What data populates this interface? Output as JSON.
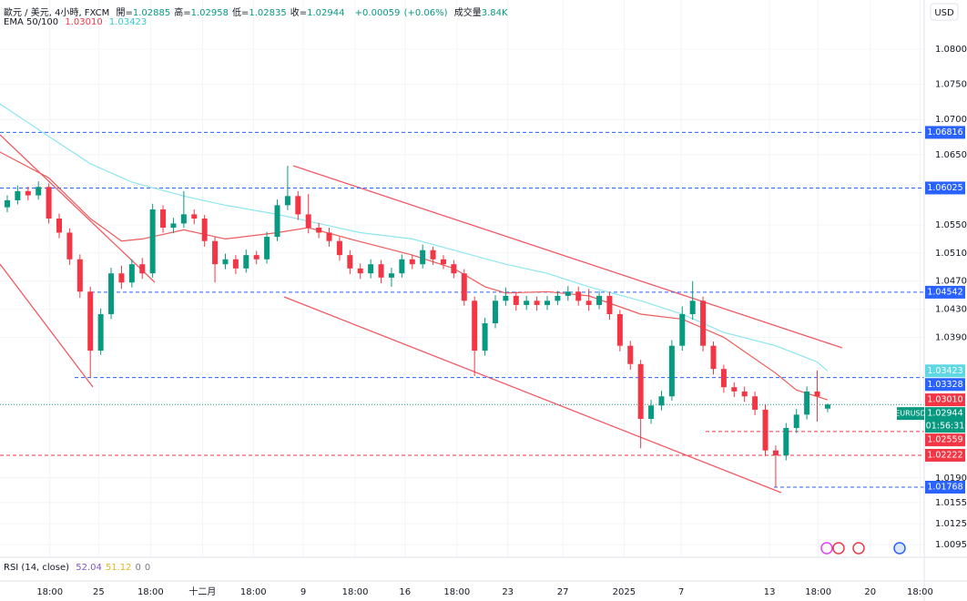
{
  "chart_data": {
    "type": "candlestick",
    "title": "歐元 / 美元, 4小時, FXCM",
    "currency": "USD",
    "ohlc_labels": [
      "開=",
      "高=",
      "低=",
      "收="
    ],
    "change": {
      "value": 0.00059,
      "label": "+0.00059"
    },
    "change_pct": {
      "value": 0.06,
      "label": "(+0.06%)"
    },
    "volume_label": "成交量",
    "volume": {
      "value": 3840,
      "label": "3.84K"
    },
    "ema_label": "EMA 50/100",
    "rsi": {
      "label": "RSI (14, close)",
      "values": [
        52.04,
        51.12,
        0,
        0
      ],
      "colors": [
        "#7e57c2",
        "#e6b422",
        "#787b86",
        "#787b86"
      ]
    },
    "up_color": "#089981",
    "down_color": "#f23645",
    "grid": true,
    "xlim": [
      -0.7,
      88.3
    ],
    "ylim": [
      1.0077,
      1.087
    ],
    "yticks": [
      {
        "value": 1.08,
        "label": "1.08000"
      },
      {
        "value": 1.075,
        "label": "1.07500"
      },
      {
        "value": 1.07,
        "label": "1.07000"
      },
      {
        "value": 1.065,
        "label": "1.06500"
      },
      {
        "value": 1.055,
        "label": "1.05500"
      },
      {
        "value": 1.051,
        "label": "1.05100"
      },
      {
        "value": 1.047,
        "label": "1.04700"
      },
      {
        "value": 1.043,
        "label": "1.04300"
      },
      {
        "value": 1.039,
        "label": "1.03900"
      },
      {
        "value": 1.019,
        "label": "1.01900"
      },
      {
        "value": 1.0155,
        "label": "1.01550"
      },
      {
        "value": 1.0125,
        "label": "1.01250"
      },
      {
        "value": 1.0095,
        "label": "1.00950"
      }
    ],
    "xticks": [
      {
        "value": 4.1,
        "label": "18:00"
      },
      {
        "value": 8.8,
        "label": "25"
      },
      {
        "value": 13.8,
        "label": "18:00"
      },
      {
        "value": 18.8,
        "label": "十二月"
      },
      {
        "value": 23.7,
        "label": "18:00"
      },
      {
        "value": 28.5,
        "label": "9"
      },
      {
        "value": 33.5,
        "label": "18:00"
      },
      {
        "value": 38.3,
        "label": "16"
      },
      {
        "value": 43.3,
        "label": "18:00"
      },
      {
        "value": 48.2,
        "label": "23"
      },
      {
        "value": 53.5,
        "label": "27"
      },
      {
        "value": 59.4,
        "label": "2025"
      },
      {
        "value": 64.9,
        "label": "7"
      },
      {
        "value": 73.4,
        "label": "13"
      },
      {
        "value": 78.1,
        "label": "18:00"
      },
      {
        "value": 83.1,
        "label": "20"
      },
      {
        "value": 87.9,
        "label": "18:00"
      }
    ],
    "candles": [
      [
        1.0575,
        1.0592,
        1.0568,
        1.0585
      ],
      [
        1.0585,
        1.0606,
        1.0579,
        1.0598
      ],
      [
        1.0598,
        1.0604,
        1.0585,
        1.0592
      ],
      [
        1.0592,
        1.0612,
        1.0586,
        1.0604
      ],
      [
        1.0604,
        1.0609,
        1.0552,
        1.0559
      ],
      [
        1.0559,
        1.0566,
        1.0531,
        1.0539
      ],
      [
        1.0539,
        1.0545,
        1.0493,
        1.0501
      ],
      [
        1.0501,
        1.0508,
        1.0446,
        1.0455
      ],
      [
        1.0455,
        1.0462,
        1.0333,
        1.0371
      ],
      [
        1.0371,
        1.0431,
        1.0365,
        1.0423
      ],
      [
        1.0423,
        1.0489,
        1.0416,
        1.0481
      ],
      [
        1.0481,
        1.0492,
        1.0459,
        1.0468
      ],
      [
        1.0468,
        1.0501,
        1.0461,
        1.0494
      ],
      [
        1.0494,
        1.0503,
        1.0473,
        1.0481
      ],
      [
        1.0481,
        1.058,
        1.0475,
        1.0572
      ],
      [
        1.0572,
        1.0578,
        1.0539,
        1.0546
      ],
      [
        1.0546,
        1.056,
        1.0538,
        1.0552
      ],
      [
        1.0552,
        1.0598,
        1.0546,
        1.0565
      ],
      [
        1.0565,
        1.0572,
        1.0551,
        1.0559
      ],
      [
        1.0559,
        1.0564,
        1.0519,
        1.0527
      ],
      [
        1.0527,
        1.0533,
        1.0468,
        1.0494
      ],
      [
        1.0494,
        1.0509,
        1.0487,
        1.0501
      ],
      [
        1.0501,
        1.0507,
        1.048,
        1.0488
      ],
      [
        1.0488,
        1.0515,
        1.0482,
        1.0507
      ],
      [
        1.0507,
        1.0513,
        1.0494,
        1.0501
      ],
      [
        1.0501,
        1.054,
        1.0495,
        1.0533
      ],
      [
        1.0533,
        1.0586,
        1.0527,
        1.0578
      ],
      [
        1.0578,
        1.0634,
        1.0571,
        1.0591
      ],
      [
        1.0591,
        1.0598,
        1.0557,
        1.0565
      ],
      [
        1.0565,
        1.0594,
        1.0538,
        1.0546
      ],
      [
        1.0546,
        1.0553,
        1.0531,
        1.0539
      ],
      [
        1.0539,
        1.0546,
        1.0519,
        1.0527
      ],
      [
        1.0527,
        1.0533,
        1.0499,
        1.0507
      ],
      [
        1.0507,
        1.0514,
        1.048,
        1.0488
      ],
      [
        1.0488,
        1.0495,
        1.0473,
        1.0481
      ],
      [
        1.0481,
        1.0501,
        1.0474,
        1.0494
      ],
      [
        1.0494,
        1.05,
        1.0467,
        1.0475
      ],
      [
        1.0475,
        1.0489,
        1.0462,
        1.0481
      ],
      [
        1.0481,
        1.0508,
        1.0475,
        1.0501
      ],
      [
        1.0501,
        1.0507,
        1.0487,
        1.0494
      ],
      [
        1.0494,
        1.0522,
        1.0488,
        1.0514
      ],
      [
        1.0514,
        1.0519,
        1.0493,
        1.0501
      ],
      [
        1.0501,
        1.0507,
        1.0487,
        1.0494
      ],
      [
        1.0494,
        1.05,
        1.0474,
        1.0481
      ],
      [
        1.0481,
        1.0487,
        1.0435,
        1.0442
      ],
      [
        1.0442,
        1.0448,
        1.0335,
        1.0371
      ],
      [
        1.0371,
        1.0418,
        1.0364,
        1.041
      ],
      [
        1.041,
        1.045,
        1.0403,
        1.0442
      ],
      [
        1.0442,
        1.0461,
        1.0435,
        1.0449
      ],
      [
        1.0449,
        1.0455,
        1.0428,
        1.0436
      ],
      [
        1.0436,
        1.0449,
        1.0429,
        1.0442
      ],
      [
        1.0442,
        1.0448,
        1.0428,
        1.0436
      ],
      [
        1.0436,
        1.0449,
        1.0429,
        1.0442
      ],
      [
        1.0442,
        1.0456,
        1.0436,
        1.0449
      ],
      [
        1.0449,
        1.0463,
        1.0442,
        1.0455
      ],
      [
        1.0455,
        1.0462,
        1.0435,
        1.0442
      ],
      [
        1.0442,
        1.0459,
        1.0428,
        1.0436
      ],
      [
        1.0436,
        1.0456,
        1.043,
        1.0449
      ],
      [
        1.0449,
        1.0455,
        1.0415,
        1.0423
      ],
      [
        1.0423,
        1.0429,
        1.037,
        1.0378
      ],
      [
        1.0378,
        1.0385,
        1.0344,
        1.0352
      ],
      [
        1.0352,
        1.0358,
        1.0232,
        1.0274
      ],
      [
        1.0274,
        1.0301,
        1.0267,
        1.0293
      ],
      [
        1.0293,
        1.0314,
        1.0286,
        1.0306
      ],
      [
        1.0306,
        1.0386,
        1.03,
        1.0378
      ],
      [
        1.0378,
        1.0434,
        1.0371,
        1.0423
      ],
      [
        1.0423,
        1.047,
        1.0415,
        1.0442
      ],
      [
        1.0442,
        1.0448,
        1.037,
        1.0378
      ],
      [
        1.0378,
        1.0384,
        1.0337,
        1.0345
      ],
      [
        1.0345,
        1.0351,
        1.0311,
        1.0319
      ],
      [
        1.0319,
        1.0326,
        1.0305,
        1.0313
      ],
      [
        1.0313,
        1.032,
        1.0298,
        1.0306
      ],
      [
        1.0306,
        1.0313,
        1.0279,
        1.0287
      ],
      [
        1.0287,
        1.0294,
        1.0221,
        1.0229
      ],
      [
        1.0229,
        1.0236,
        1.0177,
        1.0222
      ],
      [
        1.0222,
        1.0268,
        1.0215,
        1.0261
      ],
      [
        1.0261,
        1.0288,
        1.0254,
        1.028
      ],
      [
        1.028,
        1.032,
        1.0273,
        1.0313
      ],
      [
        1.0313,
        1.0343,
        1.027,
        1.0306
      ],
      [
        1.02885,
        1.02958,
        1.02835,
        1.02944
      ]
    ],
    "ema": [
      {
        "color": "#f05a5a",
        "x": [
          -1,
          4,
          8,
          11,
          13,
          17,
          21,
          26,
          29,
          33,
          39,
          43,
          46,
          48,
          52,
          56,
          61,
          65,
          69,
          74,
          76,
          79
        ],
        "values": [
          1.0656,
          1.0617,
          1.0559,
          1.0527,
          1.053,
          1.0543,
          1.053,
          1.0539,
          1.0546,
          1.053,
          1.0507,
          1.0488,
          1.0462,
          1.0453,
          1.0455,
          1.0449,
          1.0423,
          1.0416,
          1.039,
          1.0339,
          1.0315,
          1.0301
        ]
      },
      {
        "color": "#8ee6ef",
        "x": [
          -1,
          4,
          8,
          12,
          17,
          21,
          26,
          30,
          34,
          39,
          43,
          48,
          52,
          56,
          61,
          65,
          69,
          74,
          78,
          79
        ],
        "values": [
          1.0725,
          1.0676,
          1.0637,
          1.0611,
          1.0591,
          1.0578,
          1.0565,
          1.0552,
          1.0539,
          1.053,
          1.0514,
          1.0494,
          1.0481,
          1.0462,
          1.0442,
          1.0423,
          1.0397,
          1.0378,
          1.0355,
          1.03423
        ]
      }
    ],
    "price_levels": [
      {
        "value": 1.06816,
        "color": "#2962ff",
        "line": "dashed"
      },
      {
        "value": 1.06025,
        "color": "#2962ff",
        "line": "dashed"
      },
      {
        "value": 1.04542,
        "color": "#2962ff",
        "line": "dashed"
      },
      {
        "value": 1.03423,
        "color": "#5fd8e3",
        "line": "none"
      },
      {
        "value": 1.03328,
        "color": "#2962ff",
        "line": "dashed"
      },
      {
        "value": 1.0301,
        "label": "1.03010",
        "color": "#f23645",
        "line": "none"
      },
      {
        "value": 1.02944,
        "color": "#089981",
        "line": "dotted",
        "name": "EURUSD",
        "countdown": "01:56:31"
      },
      {
        "value": 1.02559,
        "color": "#f23645",
        "line": "dashed"
      },
      {
        "value": 1.02222,
        "color": "#f23645",
        "line": "dashed"
      },
      {
        "value": 1.01768,
        "color": "#2962ff",
        "line": "dashed"
      }
    ]
  }
}
